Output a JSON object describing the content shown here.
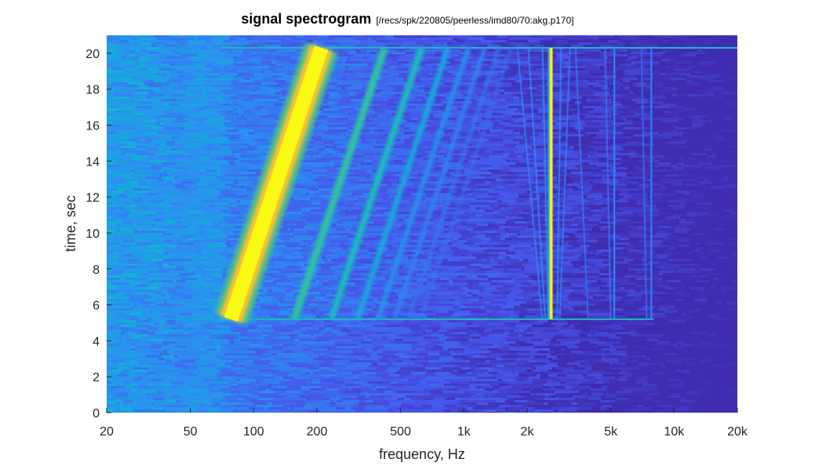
{
  "chart_data": {
    "type": "heatmap",
    "title": "signal spectrogram",
    "subtitle": "[/recs/spk/220805/peerless/imd80/70:akg.p170]",
    "xlabel": "frequency, Hz",
    "ylabel": "time, sec",
    "x_scale": "log",
    "xlim": [
      20,
      20000
    ],
    "ylim": [
      0,
      21
    ],
    "x_ticks": [
      20,
      50,
      100,
      200,
      500,
      1000,
      2000,
      5000,
      10000,
      20000
    ],
    "x_tick_labels": [
      "20",
      "50",
      "100",
      "200",
      "500",
      "1k",
      "2k",
      "5k",
      "10k",
      "20k"
    ],
    "y_ticks": [
      0,
      2,
      4,
      6,
      8,
      10,
      12,
      14,
      16,
      18,
      20
    ],
    "y_tick_labels": [
      "0",
      "2",
      "4",
      "6",
      "8",
      "10",
      "12",
      "14",
      "16",
      "18",
      "20"
    ],
    "colormap": "parula",
    "colors": {
      "low": "#3e26a8",
      "mid": "#1fa5c7",
      "high": "#f9fb15"
    },
    "sweep": {
      "t_start": 5.2,
      "t_end": 20.3,
      "f_start": 78,
      "f_end": 210
    },
    "harmonic_tracks": [
      {
        "order": 1,
        "f_start": 78,
        "f_end": 210,
        "intensity": 1.0
      },
      {
        "order": 2,
        "f_start": 156,
        "f_end": 420,
        "intensity": 0.55
      },
      {
        "order": 3,
        "f_start": 234,
        "f_end": 630,
        "intensity": 0.5
      },
      {
        "order": 4,
        "f_start": 312,
        "f_end": 840,
        "intensity": 0.4
      },
      {
        "order": 5,
        "f_start": 390,
        "f_end": 1050,
        "intensity": 0.33
      },
      {
        "order": 6,
        "f_start": 468,
        "f_end": 1260,
        "intensity": 0.28
      },
      {
        "order": 7,
        "f_start": 546,
        "f_end": 1470,
        "intensity": 0.25
      },
      {
        "order": 8,
        "f_start": 624,
        "f_end": 1680,
        "intensity": 0.22
      }
    ],
    "imd_tracks": [
      {
        "f_start": 2520,
        "f_end": 2370,
        "intensity": 0.33
      },
      {
        "f_start": 2440,
        "f_end": 2030,
        "intensity": 0.3
      },
      {
        "f_start": 2360,
        "f_end": 1800,
        "intensity": 0.28
      },
      {
        "f_start": 2780,
        "f_end": 2900,
        "intensity": 0.3
      },
      {
        "f_start": 2860,
        "f_end": 3200,
        "intensity": 0.27
      },
      {
        "f_start": 3900,
        "f_end": 3400,
        "intensity": 0.25
      },
      {
        "f_start": 5000,
        "f_end": 4700,
        "intensity": 0.24
      },
      {
        "f_start": 7400,
        "f_end": 7000,
        "intensity": 0.23
      }
    ],
    "steady_tones": [
      {
        "frequency": 2600,
        "t_start": 5.2,
        "t_end": 20.3,
        "intensity": 0.97
      },
      {
        "frequency": 2530,
        "t_start": 5.2,
        "t_end": 20.3,
        "intensity": 0.45
      },
      {
        "frequency": 5200,
        "t_start": 5.2,
        "t_end": 20.3,
        "intensity": 0.3
      },
      {
        "frequency": 7800,
        "t_start": 5.2,
        "t_end": 20.3,
        "intensity": 0.28
      }
    ],
    "event_lines": [
      {
        "time": 5.2,
        "f_start": 70,
        "f_end": 8000,
        "intensity": 0.5
      },
      {
        "time": 20.3,
        "f_start": 70,
        "f_end": 20000,
        "intensity": 0.5
      }
    ]
  }
}
